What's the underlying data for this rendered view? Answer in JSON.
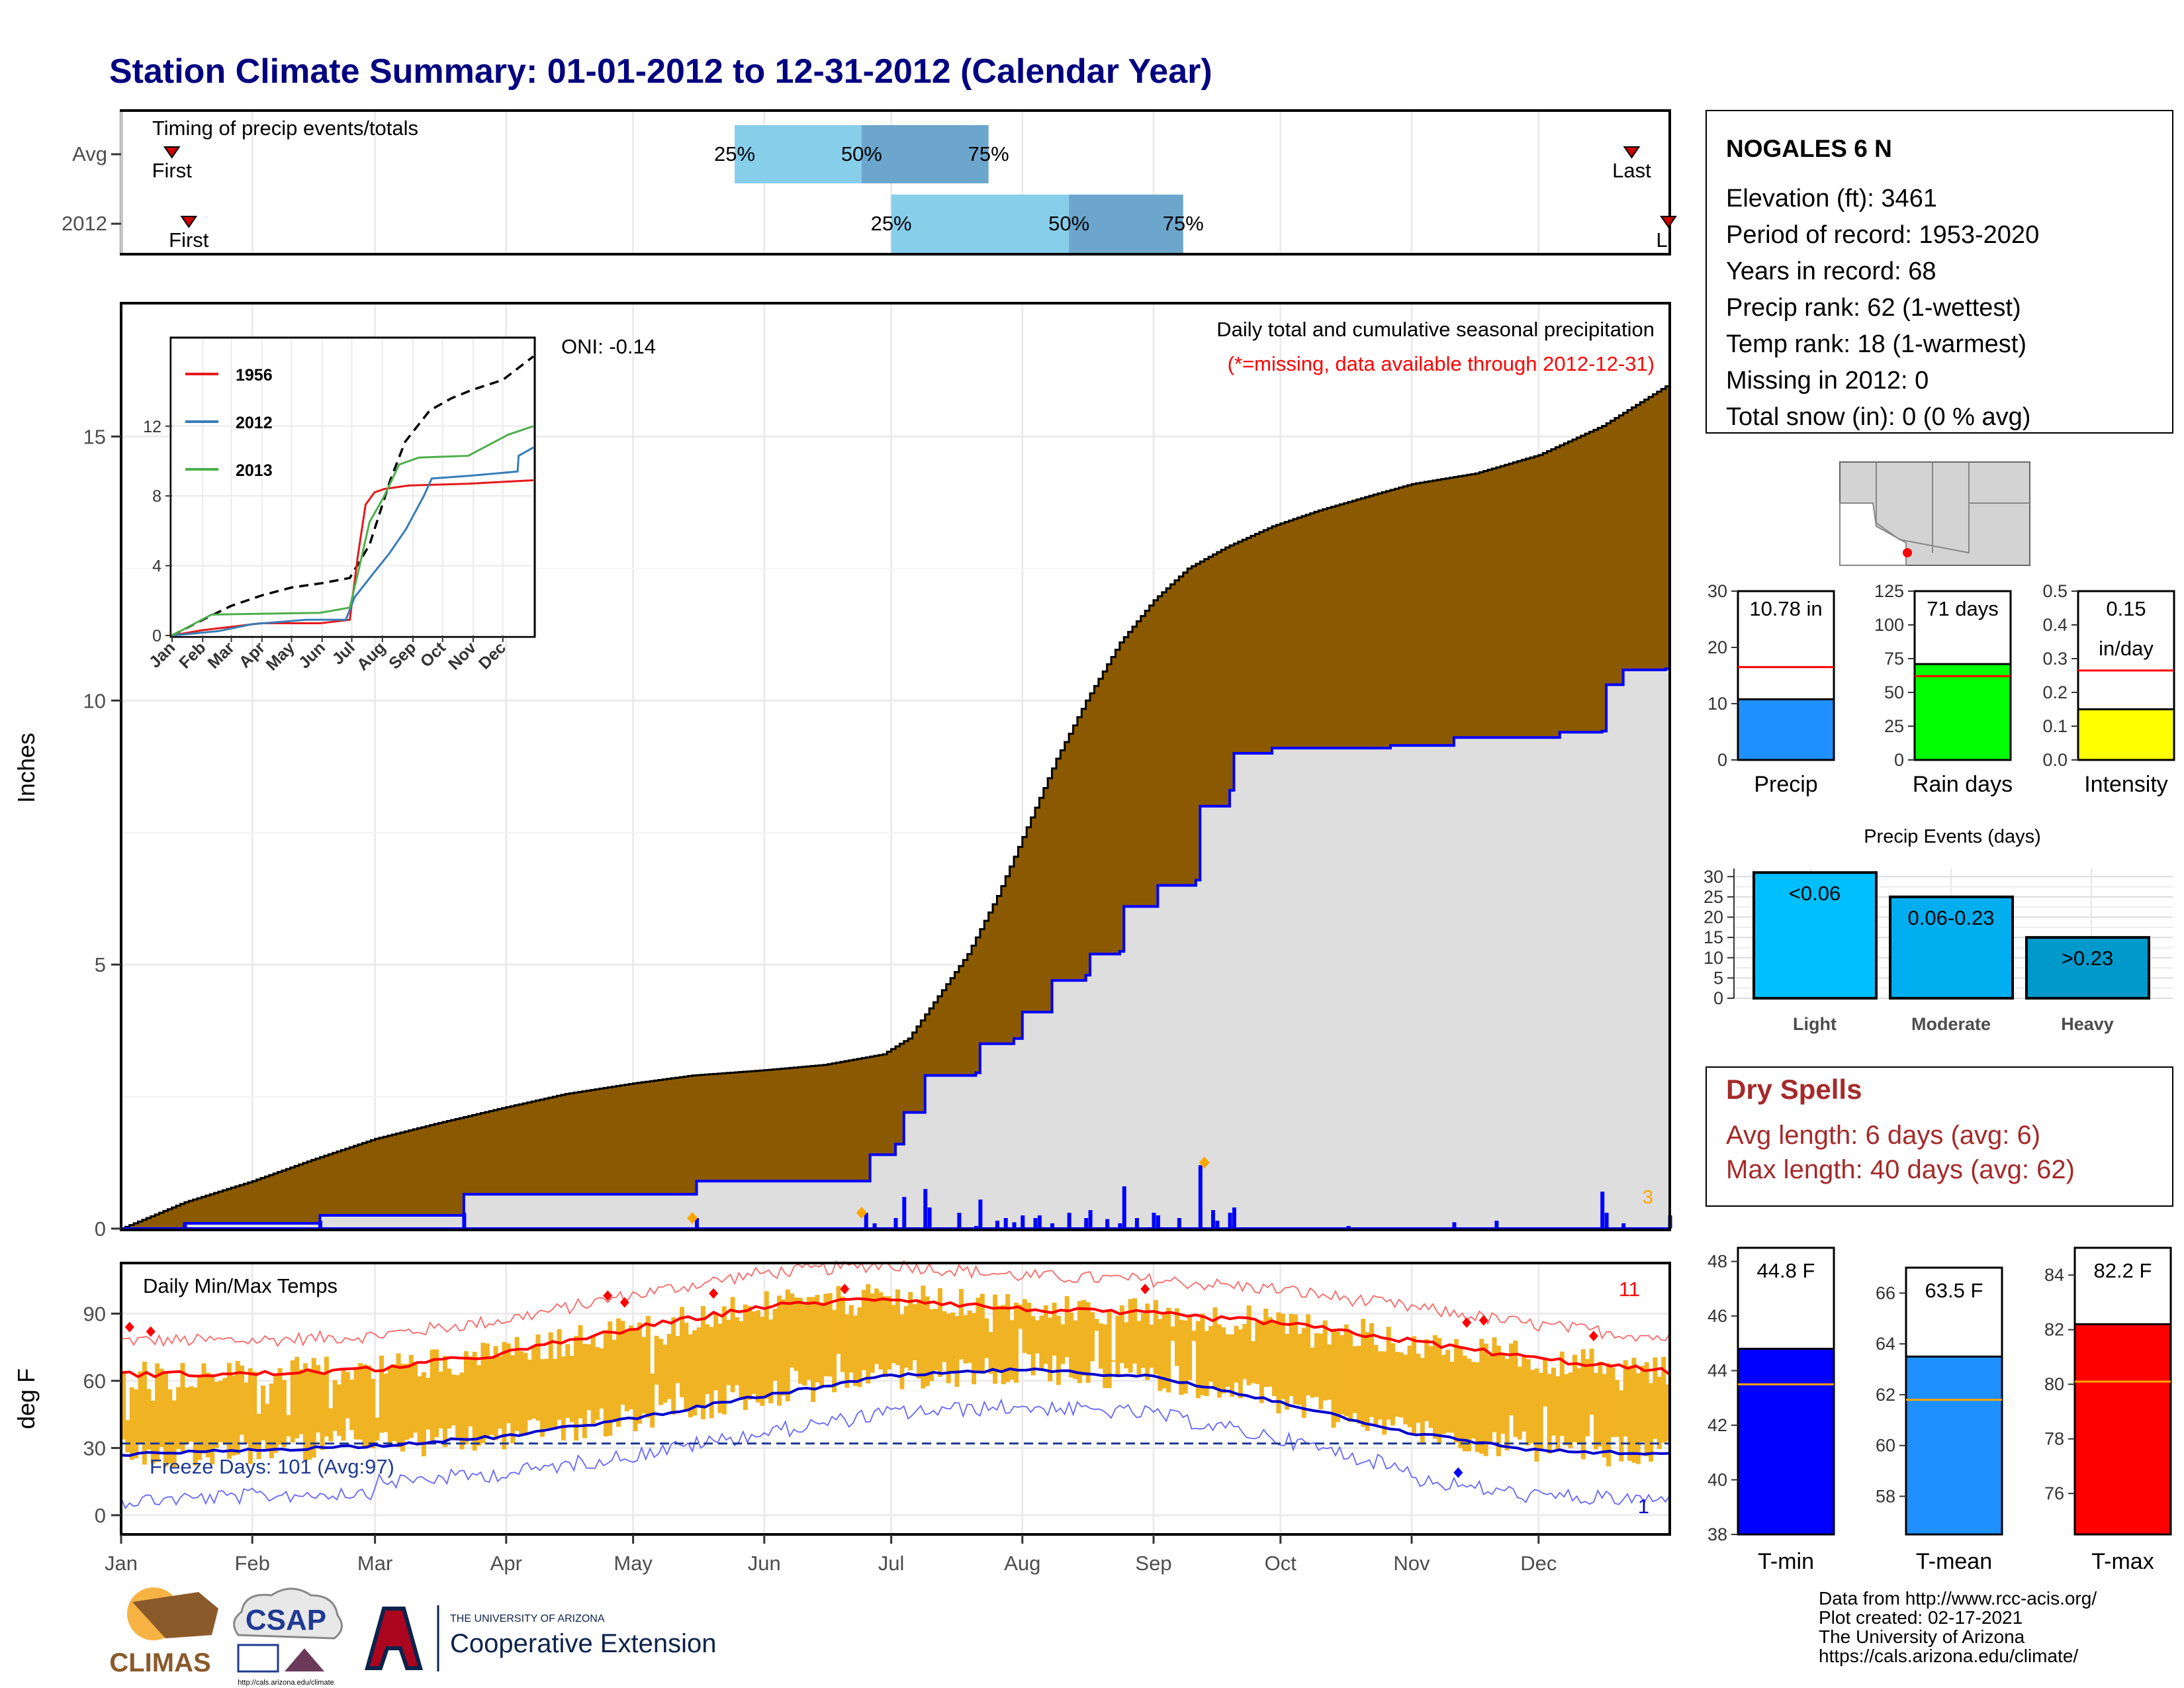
{
  "title": "Station Climate Summary: 01-01-2012 to 12-31-2012 (Calendar Year)",
  "months": [
    "Jan",
    "Feb",
    "Mar",
    "Apr",
    "May",
    "Jun",
    "Jul",
    "Aug",
    "Sep",
    "Oct",
    "Nov",
    "Dec"
  ],
  "timing": {
    "title": "Timing of precip events/totals",
    "rows": [
      {
        "label": "Avg",
        "first": "First",
        "last": "Last",
        "q25": "25%",
        "q50": "50%",
        "q75": "75%",
        "q25_day": 145,
        "q50_day": 175,
        "q75_day": 205,
        "first_day": 12,
        "last_day": 357
      },
      {
        "label": "2012",
        "first": "First",
        "last": "Last",
        "q25": "25%",
        "q50": "50%",
        "q75": "75%",
        "q25_day": 182,
        "q50_day": 224,
        "q75_day": 251,
        "first_day": 16,
        "last_day": 366
      }
    ]
  },
  "precip": {
    "ylabel": "Inches",
    "title": "Daily total and cumulative seasonal precipitation",
    "subtitle": "(*=missing, data available through 2012-12-31)",
    "oni": "ONI: -0.14",
    "corner_count": "3",
    "yticks": [
      "0",
      "5",
      "10",
      "15"
    ],
    "ylim": [
      0,
      17.5
    ],
    "avg_cum": [
      [
        0,
        0
      ],
      [
        15,
        0.5
      ],
      [
        31,
        0.9
      ],
      [
        45,
        1.3
      ],
      [
        60,
        1.7
      ],
      [
        75,
        2.0
      ],
      [
        91,
        2.3
      ],
      [
        105,
        2.55
      ],
      [
        121,
        2.75
      ],
      [
        135,
        2.9
      ],
      [
        152,
        3.0
      ],
      [
        166,
        3.1
      ],
      [
        180,
        3.3
      ],
      [
        186,
        3.6
      ],
      [
        193,
        4.4
      ],
      [
        200,
        5.2
      ],
      [
        207,
        6.3
      ],
      [
        214,
        7.6
      ],
      [
        221,
        8.9
      ],
      [
        228,
        10.0
      ],
      [
        236,
        11.1
      ],
      [
        244,
        11.9
      ],
      [
        252,
        12.5
      ],
      [
        261,
        12.9
      ],
      [
        272,
        13.3
      ],
      [
        283,
        13.6
      ],
      [
        296,
        13.9
      ],
      [
        305,
        14.1
      ],
      [
        320,
        14.3
      ],
      [
        335,
        14.65
      ],
      [
        350,
        15.2
      ],
      [
        366,
        16.0
      ]
    ],
    "obs_cum": [
      [
        0,
        0
      ],
      [
        15,
        0.1
      ],
      [
        46,
        0.1
      ],
      [
        47,
        0.25
      ],
      [
        80,
        0.25
      ],
      [
        81,
        0.65
      ],
      [
        135,
        0.65
      ],
      [
        136,
        0.9
      ],
      [
        175,
        0.9
      ],
      [
        177,
        1.4
      ],
      [
        183,
        1.6
      ],
      [
        185,
        2.2
      ],
      [
        190,
        2.9
      ],
      [
        202,
        2.95
      ],
      [
        203,
        3.5
      ],
      [
        211,
        3.6
      ],
      [
        213,
        4.1
      ],
      [
        220,
        4.7
      ],
      [
        228,
        4.8
      ],
      [
        229,
        5.2
      ],
      [
        236,
        5.25
      ],
      [
        237,
        6.1
      ],
      [
        245,
        6.5
      ],
      [
        254,
        6.6
      ],
      [
        255,
        8.0
      ],
      [
        262,
        8.3
      ],
      [
        263,
        9.0
      ],
      [
        272,
        9.1
      ],
      [
        290,
        9.1
      ],
      [
        300,
        9.15
      ],
      [
        315,
        9.3
      ],
      [
        340,
        9.4
      ],
      [
        350,
        9.42
      ],
      [
        351,
        10.3
      ],
      [
        355,
        10.58
      ],
      [
        365,
        10.6
      ],
      [
        366,
        10.78
      ]
    ],
    "daily_bars": [
      [
        15,
        0.1
      ],
      [
        47,
        0.15
      ],
      [
        81,
        0.3
      ],
      [
        136,
        0.2
      ],
      [
        176,
        0.3
      ],
      [
        178,
        0.1
      ],
      [
        183,
        0.2
      ],
      [
        185,
        0.6
      ],
      [
        190,
        0.75
      ],
      [
        191,
        0.4
      ],
      [
        198,
        0.3
      ],
      [
        202,
        0.05
      ],
      [
        203,
        0.55
      ],
      [
        207,
        0.15
      ],
      [
        209,
        0.2
      ],
      [
        211,
        0.12
      ],
      [
        213,
        0.25
      ],
      [
        216,
        0.2
      ],
      [
        217,
        0.25
      ],
      [
        220,
        0.1
      ],
      [
        224,
        0.3
      ],
      [
        228,
        0.2
      ],
      [
        229,
        0.35
      ],
      [
        233,
        0.18
      ],
      [
        236,
        0.1
      ],
      [
        237,
        0.8
      ],
      [
        240,
        0.2
      ],
      [
        244,
        0.3
      ],
      [
        245,
        0.25
      ],
      [
        250,
        0.2
      ],
      [
        255,
        1.2
      ],
      [
        258,
        0.35
      ],
      [
        259,
        0.15
      ],
      [
        262,
        0.3
      ],
      [
        263,
        0.4
      ],
      [
        290,
        0.05
      ],
      [
        315,
        0.12
      ],
      [
        325,
        0.15
      ],
      [
        350,
        0.7
      ],
      [
        351,
        0.3
      ],
      [
        355,
        0.1
      ],
      [
        366,
        0.25
      ]
    ],
    "missing_markers": [
      [
        135,
        0.2
      ],
      [
        175,
        0.3
      ],
      [
        256,
        1.25
      ]
    ]
  },
  "inset": {
    "yticks": [
      "0",
      "4",
      "8",
      "12"
    ],
    "xticks": [
      "Jan",
      "Feb",
      "Mar",
      "Apr",
      "May",
      "Jun",
      "Jul",
      "Aug",
      "Sep",
      "Oct",
      "Nov",
      "Dec"
    ],
    "ylim": [
      0,
      17
    ],
    "series": [
      {
        "name": "1956",
        "color": "#e41a1c",
        "points": [
          [
            0,
            0
          ],
          [
            30,
            0.3
          ],
          [
            60,
            0.5
          ],
          [
            90,
            0.7
          ],
          [
            150,
            0.7
          ],
          [
            180,
            0.9
          ],
          [
            188,
            4.5
          ],
          [
            196,
            7.5
          ],
          [
            205,
            8.2
          ],
          [
            215,
            8.4
          ],
          [
            240,
            8.6
          ],
          [
            300,
            8.7
          ],
          [
            366,
            8.9
          ]
        ]
      },
      {
        "name": "2012",
        "color": "#377eb8",
        "points": [
          [
            0,
            0
          ],
          [
            47,
            0.25
          ],
          [
            81,
            0.65
          ],
          [
            136,
            0.9
          ],
          [
            176,
            0.9
          ],
          [
            185,
            2.2
          ],
          [
            203,
            3.5
          ],
          [
            220,
            4.7
          ],
          [
            237,
            6.1
          ],
          [
            255,
            8.0
          ],
          [
            263,
            9.0
          ],
          [
            300,
            9.15
          ],
          [
            350,
            9.4
          ],
          [
            351,
            10.3
          ],
          [
            366,
            10.78
          ]
        ]
      },
      {
        "name": "2013",
        "color": "#4daf4a",
        "points": [
          [
            0,
            0
          ],
          [
            20,
            0.6
          ],
          [
            40,
            1.2
          ],
          [
            150,
            1.3
          ],
          [
            180,
            1.6
          ],
          [
            190,
            4.0
          ],
          [
            200,
            6.5
          ],
          [
            215,
            8.0
          ],
          [
            230,
            9.8
          ],
          [
            250,
            10.2
          ],
          [
            300,
            10.3
          ],
          [
            340,
            11.5
          ],
          [
            366,
            12.0
          ]
        ]
      }
    ],
    "avg": [
      [
        0,
        0
      ],
      [
        31,
        0.9
      ],
      [
        60,
        1.7
      ],
      [
        91,
        2.3
      ],
      [
        121,
        2.75
      ],
      [
        152,
        3.0
      ],
      [
        180,
        3.3
      ],
      [
        200,
        5.2
      ],
      [
        221,
        8.9
      ],
      [
        236,
        11.1
      ],
      [
        261,
        12.9
      ],
      [
        283,
        13.6
      ],
      [
        305,
        14.1
      ],
      [
        335,
        14.65
      ],
      [
        366,
        16.0
      ]
    ]
  },
  "temps": {
    "ylabel": "deg F",
    "title": "Daily Min/Max Temps",
    "freeze": "Freeze Days: 101 (Avg:97)",
    "corner_hot": "11",
    "corner_cold": "1",
    "yticks": [
      "0",
      "30",
      "60",
      "90"
    ],
    "ylim": [
      -8,
      112
    ],
    "avg_max": [
      [
        0,
        63
      ],
      [
        31,
        63
      ],
      [
        59,
        65
      ],
      [
        90,
        72
      ],
      [
        120,
        83
      ],
      [
        151,
        93
      ],
      [
        181,
        97
      ],
      [
        212,
        92
      ],
      [
        243,
        90
      ],
      [
        273,
        86
      ],
      [
        304,
        78
      ],
      [
        334,
        70
      ],
      [
        366,
        64
      ]
    ],
    "avg_min": [
      [
        0,
        27
      ],
      [
        31,
        29
      ],
      [
        59,
        31
      ],
      [
        90,
        35
      ],
      [
        120,
        43
      ],
      [
        151,
        53
      ],
      [
        181,
        62
      ],
      [
        212,
        65
      ],
      [
        243,
        62
      ],
      [
        273,
        51
      ],
      [
        304,
        37
      ],
      [
        334,
        29
      ],
      [
        366,
        27
      ]
    ],
    "freeze_line": 32
  },
  "station": {
    "name": "NOGALES 6 N",
    "lines": [
      "Elevation (ft): 3461",
      "Period of record: 1953-2020",
      "Years in record: 68",
      "Precip rank: 62 (1-wettest)",
      "Temp rank: 18 (1-warmest)",
      "Missing in 2012: 0",
      "Total snow (in): 0 (0 % avg)"
    ]
  },
  "bars_small": [
    {
      "label": "Precip",
      "value_text": "10.78 in",
      "value": 10.78,
      "avg": 16.5,
      "max": 30,
      "ticks": [
        "0",
        "10",
        "20",
        "30"
      ],
      "tickvals": [
        0,
        10,
        20,
        30
      ],
      "color": "#1e90ff"
    },
    {
      "label": "Rain days",
      "value_text": "71 days",
      "value": 71,
      "avg": 62,
      "max": 125,
      "ticks": [
        "0",
        "25",
        "50",
        "75",
        "100",
        "125"
      ],
      "tickvals": [
        0,
        25,
        50,
        75,
        100,
        125
      ],
      "color": "#00ff00"
    },
    {
      "label": "Intensity",
      "value_text": "0.15",
      "value_text2": "in/day",
      "value": 0.15,
      "avg": 0.265,
      "max": 0.5,
      "ticks": [
        "0.0",
        "0.1",
        "0.2",
        "0.3",
        "0.4",
        "0.5"
      ],
      "tickvals": [
        0,
        0.1,
        0.2,
        0.3,
        0.4,
        0.5
      ],
      "color": "#ffff00"
    }
  ],
  "events": {
    "title": "Precip Events (days)",
    "categories": [
      "Light",
      "Moderate",
      "Heavy"
    ],
    "labels": [
      "<0.06",
      "0.06-0.23",
      ">0.23"
    ],
    "values": [
      31,
      25,
      15
    ],
    "colors": [
      "#00bfff",
      "#00aeef",
      "#0099cc"
    ],
    "ticks": [
      "0",
      "5",
      "10",
      "15",
      "20",
      "25",
      "30"
    ]
  },
  "dry": {
    "title": "Dry Spells",
    "avg": "Avg length: 6 days (avg: 6)",
    "max": "Max length: 40 days (avg: 62)"
  },
  "temp_bars": [
    {
      "label": "T-min",
      "value_text": "44.8 F",
      "value": 44.8,
      "avg": 43.5,
      "min": 38,
      "max": 48.5,
      "ticks": [
        "38",
        "40",
        "42",
        "44",
        "46",
        "48"
      ],
      "tickvals": [
        38,
        40,
        42,
        44,
        46,
        48
      ],
      "color": "#0000ff"
    },
    {
      "label": "T-mean",
      "value_text": "63.5 F",
      "value": 63.5,
      "avg": 61.8,
      "min": 56.5,
      "max": 67,
      "ticks": [
        "58",
        "60",
        "62",
        "64",
        "66"
      ],
      "tickvals": [
        58,
        60,
        62,
        64,
        66
      ],
      "color": "#1e90ff"
    },
    {
      "label": "T-max",
      "value_text": "82.2 F",
      "value": 82.2,
      "avg": 80.1,
      "min": 74.5,
      "max": 85,
      "ticks": [
        "76",
        "78",
        "80",
        "82",
        "84"
      ],
      "tickvals": [
        76,
        78,
        80,
        82,
        84
      ],
      "color": "#ff0000"
    }
  ],
  "footer": {
    "lines": [
      "Data from http://www.rcc-acis.org/",
      "Plot created: 02-17-2021",
      "The University of Arizona",
      "https://cals.arizona.edu/climate/"
    ],
    "climas": "CLIMAS",
    "csap": "CSAP",
    "csap_url": "http://cals.arizona.edu/climate",
    "ua_small": "THE UNIVERSITY OF ARIZONA",
    "ua_big": "Cooperative Extension"
  }
}
